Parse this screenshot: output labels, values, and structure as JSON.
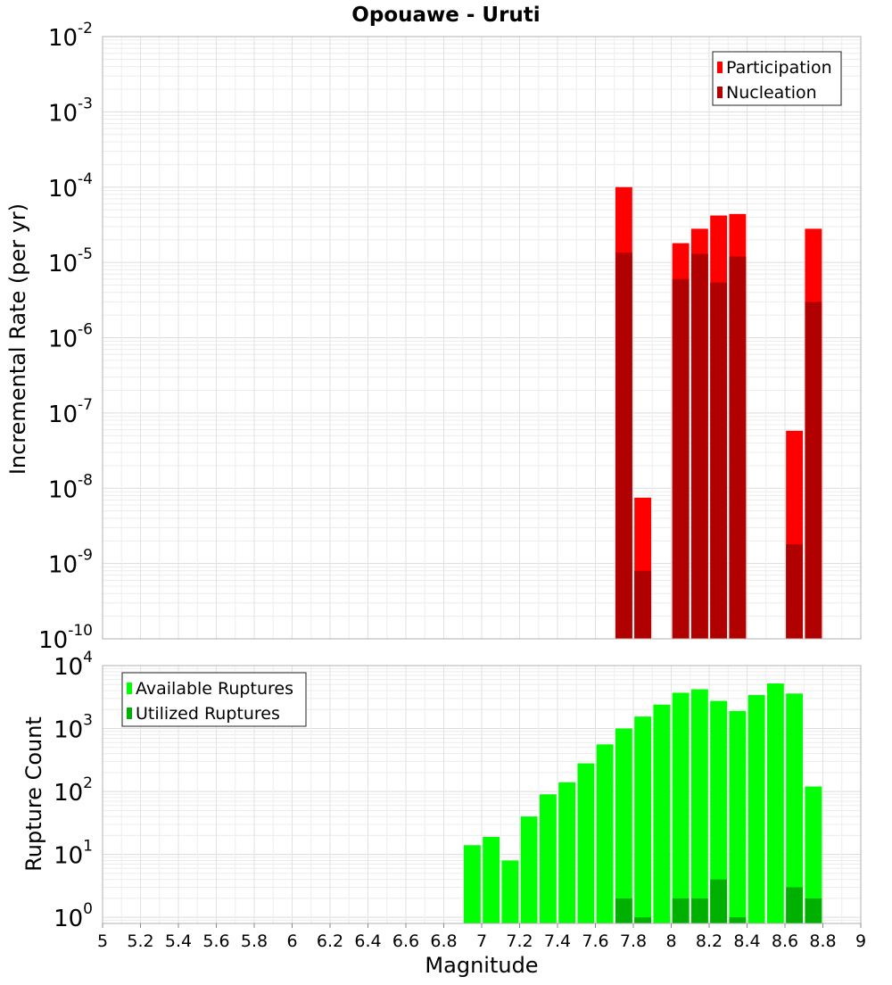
{
  "chart_data": [
    {
      "type": "bar",
      "title": "Opouawe - Uruti",
      "ylabel": "Incremental Rate (per yr)",
      "xlabel": "",
      "yscale": "log",
      "ylim": [
        1e-10,
        0.01
      ],
      "xlim": [
        5,
        9
      ],
      "y_tick_exponents": [
        -10,
        -9,
        -8,
        -7,
        -6,
        -5,
        -4,
        -3,
        -2
      ],
      "x": [
        7.75,
        7.85,
        8.05,
        8.15,
        8.25,
        8.35,
        8.65,
        8.75
      ],
      "series": [
        {
          "name": "Participation",
          "color": "#ff0000",
          "values": [
            0.0001,
            7.5e-09,
            1.8e-05,
            2.8e-05,
            4.2e-05,
            4.4e-05,
            5.8e-08,
            2.8e-05
          ]
        },
        {
          "name": "Nucleation",
          "color": "#b00000",
          "values": [
            1.35e-05,
            8e-10,
            6e-06,
            1.3e-05,
            5.4e-06,
            1.2e-05,
            1.8e-09,
            3e-06
          ]
        }
      ],
      "legend": {
        "position": "top-right",
        "entries": [
          "Participation",
          "Nucleation"
        ]
      }
    },
    {
      "type": "bar",
      "title": "",
      "ylabel": "Rupture Count",
      "xlabel": "Magnitude",
      "yscale": "log",
      "ylim": [
        0.8,
        10000
      ],
      "xlim": [
        5,
        9
      ],
      "y_tick_exponents": [
        0,
        1,
        2,
        3,
        4
      ],
      "x_ticks": [
        "5",
        "5.2",
        "5.4",
        "5.6",
        "5.8",
        "6",
        "6.2",
        "6.4",
        "6.6",
        "6.8",
        "7",
        "7.2",
        "7.4",
        "7.6",
        "7.8",
        "8",
        "8.2",
        "8.4",
        "8.6",
        "8.8",
        "9"
      ],
      "x": [
        6.95,
        7.05,
        7.15,
        7.25,
        7.35,
        7.45,
        7.55,
        7.65,
        7.75,
        7.85,
        7.95,
        8.05,
        8.15,
        8.25,
        8.35,
        8.45,
        8.55,
        8.65,
        8.75
      ],
      "series": [
        {
          "name": "Available Ruptures",
          "color": "#00ff00",
          "values": [
            14,
            19,
            8,
            40,
            90,
            140,
            280,
            560,
            1000,
            1550,
            2400,
            3700,
            4200,
            2750,
            1900,
            3400,
            5200,
            3600,
            120
          ]
        },
        {
          "name": "Utilized Ruptures",
          "color": "#00b000",
          "values": [
            0,
            0,
            0,
            0,
            0,
            0,
            0,
            0,
            2,
            1,
            0,
            2,
            2,
            4,
            1,
            0,
            0,
            3,
            2
          ]
        }
      ],
      "legend": {
        "position": "top-left",
        "entries": [
          "Available Ruptures",
          "Utilized Ruptures"
        ]
      }
    }
  ]
}
